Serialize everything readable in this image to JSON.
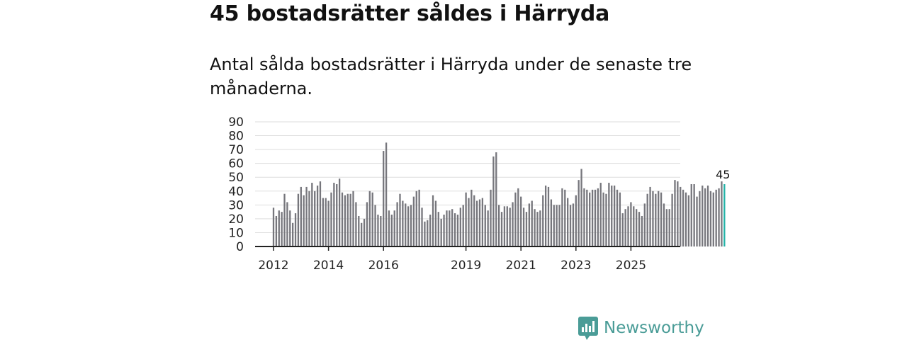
{
  "header": {
    "title": "45 bostadsrätter såldes i Härryda",
    "subtitle": "Antal sålda bostadsrätter i Härryda under de senaste tre månaderna."
  },
  "brand": {
    "name": "Newsworthy"
  },
  "colors": {
    "bar": "#76767c",
    "highlight": "#23b2a7",
    "grid": "#dddddd",
    "axis": "#222222",
    "brand": "#4a9c97"
  },
  "chart_data": {
    "type": "bar",
    "title": "Antal sålda bostadsrätter i Härryda under de senaste tre månaderna.",
    "xlabel": "",
    "ylabel": "",
    "ylim": [
      0,
      90
    ],
    "yticks": [
      0,
      10,
      20,
      30,
      40,
      50,
      60,
      70,
      80,
      90
    ],
    "x_tick_labels": [
      "2012",
      "2014",
      "2016",
      "2019",
      "2021",
      "2023",
      "2025"
    ],
    "x_tick_indices": [
      0,
      20,
      40,
      70,
      90,
      110,
      130
    ],
    "values": [
      28,
      22,
      26,
      25,
      38,
      32,
      26,
      17,
      24,
      38,
      43,
      37,
      43,
      40,
      46,
      40,
      44,
      47,
      35,
      35,
      33,
      39,
      46,
      45,
      49,
      39,
      37,
      38,
      38,
      40,
      32,
      22,
      17,
      20,
      32,
      40,
      39,
      30,
      23,
      22,
      69,
      75,
      26,
      23,
      26,
      32,
      38,
      33,
      31,
      29,
      30,
      36,
      40,
      41,
      28,
      18,
      19,
      23,
      37,
      33,
      25,
      20,
      23,
      26,
      26,
      27,
      24,
      23,
      28,
      30,
      39,
      35,
      41,
      37,
      33,
      34,
      35,
      30,
      26,
      41,
      65,
      68,
      30,
      25,
      29,
      29,
      28,
      32,
      39,
      42,
      36,
      28,
      25,
      31,
      33,
      27,
      25,
      26,
      37,
      44,
      43,
      34,
      30,
      30,
      30,
      42,
      41,
      35,
      30,
      31,
      37,
      48,
      56,
      42,
      41,
      39,
      41,
      41,
      42,
      46,
      39,
      38,
      46,
      44,
      44,
      41,
      39,
      24,
      27,
      29,
      32,
      29,
      27,
      25,
      22,
      31,
      38,
      43,
      40,
      38,
      40,
      39,
      31,
      27,
      27,
      38,
      48,
      47,
      43,
      41,
      39,
      37,
      45,
      45,
      36,
      40,
      44,
      42,
      44,
      40,
      39,
      41,
      42,
      47,
      45
    ],
    "highlight_label": "45"
  }
}
